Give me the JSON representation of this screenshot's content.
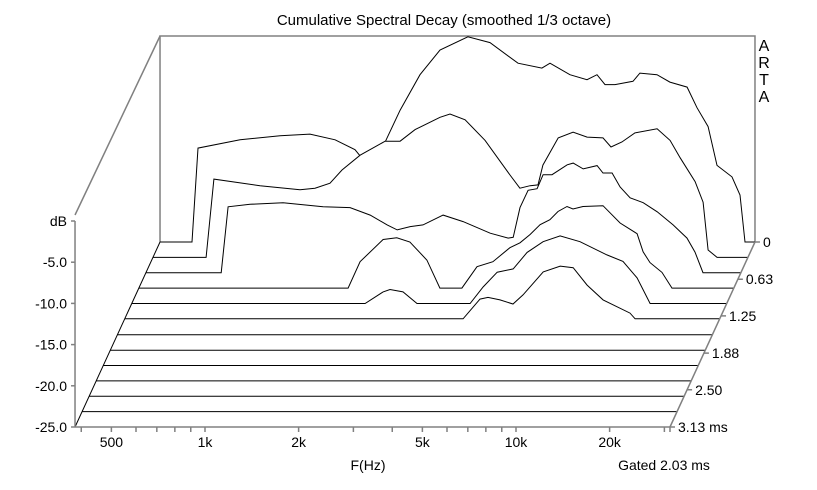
{
  "chart_data": {
    "type": "waterfall",
    "title": "Cumulative Spectral Decay (smoothed 1/3 octave)",
    "xlabel": "F(Hz)",
    "ylabel": "dB",
    "zlabel_unit": "ms",
    "note": "Gated 2.03 ms",
    "watermark": "ARTA",
    "x_scale": "log",
    "xlim": [
      382,
      31270
    ],
    "ylim": [
      -25,
      0
    ],
    "zlim": [
      0,
      3.13
    ],
    "x_ticks": [
      {
        "v": 500,
        "label": "500"
      },
      {
        "v": 1000,
        "label": "1k"
      },
      {
        "v": 2000,
        "label": "2k"
      },
      {
        "v": 5000,
        "label": "5k"
      },
      {
        "v": 10000,
        "label": "10k"
      },
      {
        "v": 20000,
        "label": "20k"
      }
    ],
    "x_minor_ticks": [
      400,
      500,
      600,
      700,
      800,
      900,
      1000,
      2000,
      3000,
      4000,
      5000,
      6000,
      7000,
      8000,
      9000,
      10000,
      20000,
      30000
    ],
    "y_ticks": [
      {
        "v": 0,
        "label": "dB"
      },
      {
        "v": -5,
        "label": "-5.0"
      },
      {
        "v": -10,
        "label": "-10.0"
      },
      {
        "v": -15,
        "label": "-15.0"
      },
      {
        "v": -20,
        "label": "-20.0"
      },
      {
        "v": -25,
        "label": "-25.0"
      }
    ],
    "z_ticks": [
      {
        "v": 0,
        "label": "0"
      },
      {
        "v": 0.63,
        "label": "0.63"
      },
      {
        "v": 1.25,
        "label": "1.25"
      },
      {
        "v": 1.88,
        "label": "1.88"
      },
      {
        "v": 2.5,
        "label": "2.50"
      },
      {
        "v": 3.13,
        "label": "3.13 ms"
      }
    ],
    "colors": {
      "curve": "#000000",
      "axis": "#808080",
      "fill": "#ffffff"
    },
    "slices": [
      {
        "t_ms": 0,
        "points": [
          [
            382,
            -25
          ],
          [
            484,
            -25
          ],
          [
            506,
            -13.6
          ],
          [
            691,
            -12.6
          ],
          [
            929,
            -12.1
          ],
          [
            1160,
            -11.9
          ],
          [
            1396,
            -12.6
          ],
          [
            1618,
            -13.8
          ],
          [
            1780,
            -15.7
          ],
          [
            2020,
            -12.9
          ],
          [
            2259,
            -9.0
          ],
          [
            2618,
            -4.7
          ],
          [
            3035,
            -1.7
          ],
          [
            3733,
            -0.1
          ],
          [
            4395,
            -0.8
          ],
          [
            5408,
            -3.3
          ],
          [
            6457,
            -3.9
          ],
          [
            6855,
            -3.3
          ],
          [
            7943,
            -4.7
          ],
          [
            9016,
            -5.3
          ],
          [
            9706,
            -4.7
          ],
          [
            10300,
            -5.9
          ],
          [
            11090,
            -5.9
          ],
          [
            12670,
            -5.5
          ],
          [
            13340,
            -4.5
          ],
          [
            15140,
            -4.7
          ],
          [
            16660,
            -5.6
          ],
          [
            18910,
            -6.2
          ],
          [
            20350,
            -8.7
          ],
          [
            22100,
            -11.0
          ],
          [
            23610,
            -15.7
          ],
          [
            26370,
            -17.1
          ],
          [
            27990,
            -19.3
          ],
          [
            29040,
            -25
          ],
          [
            31270,
            -25
          ]
        ]
      },
      {
        "t_ms": 0.26,
        "points": [
          [
            382,
            -25
          ],
          [
            566,
            -25
          ],
          [
            600,
            -15.5
          ],
          [
            844,
            -16.3
          ],
          [
            1135,
            -16.8
          ],
          [
            1268,
            -16.6
          ],
          [
            1417,
            -16.0
          ],
          [
            1549,
            -14.4
          ],
          [
            1770,
            -12.6
          ],
          [
            2130,
            -10.9
          ],
          [
            2381,
            -10.9
          ],
          [
            2660,
            -9.5
          ],
          [
            3199,
            -8.0
          ],
          [
            3444,
            -7.6
          ],
          [
            3852,
            -8.3
          ],
          [
            4467,
            -10.8
          ],
          [
            5373,
            -15.0
          ],
          [
            5781,
            -16.6
          ],
          [
            6233,
            -16.3
          ],
          [
            6607,
            -16.2
          ],
          [
            6855,
            -13.8
          ],
          [
            7674,
            -10.5
          ],
          [
            8570,
            -9.8
          ],
          [
            9506,
            -10.4
          ],
          [
            10690,
            -10.5
          ],
          [
            11350,
            -11.6
          ],
          [
            12300,
            -11.0
          ],
          [
            13550,
            -9.9
          ],
          [
            15960,
            -9.4
          ],
          [
            17580,
            -10.8
          ],
          [
            18930,
            -12.9
          ],
          [
            21150,
            -15.8
          ],
          [
            22440,
            -18.3
          ],
          [
            23280,
            -24.1
          ],
          [
            24890,
            -25
          ],
          [
            31270,
            -25
          ]
        ]
      },
      {
        "t_ms": 0.52,
        "points": [
          [
            382,
            -25
          ],
          [
            667,
            -25
          ],
          [
            702,
            -17.0
          ],
          [
            826,
            -16.7
          ],
          [
            1055,
            -16.5
          ],
          [
            1419,
            -17.0
          ],
          [
            1733,
            -17.1
          ],
          [
            2011,
            -18.0
          ],
          [
            2280,
            -19.2
          ],
          [
            2455,
            -19.8
          ],
          [
            2703,
            -19.4
          ],
          [
            2972,
            -19.2
          ],
          [
            3450,
            -18.0
          ],
          [
            4000,
            -18.8
          ],
          [
            4887,
            -20.2
          ],
          [
            5585,
            -20.8
          ],
          [
            5794,
            -20.7
          ],
          [
            6097,
            -17.1
          ],
          [
            6471,
            -15.0
          ],
          [
            6918,
            -14.8
          ],
          [
            7231,
            -13.1
          ],
          [
            7727,
            -13.1
          ],
          [
            8642,
            -11.9
          ],
          [
            9036,
            -11.7
          ],
          [
            9730,
            -12.4
          ],
          [
            10790,
            -12.0
          ],
          [
            11270,
            -12.9
          ],
          [
            12050,
            -12.9
          ],
          [
            12790,
            -14.6
          ],
          [
            13770,
            -15.9
          ],
          [
            15170,
            -16.5
          ],
          [
            16830,
            -17.6
          ],
          [
            18940,
            -19.2
          ],
          [
            20990,
            -20.8
          ],
          [
            22270,
            -22.5
          ],
          [
            23620,
            -25
          ],
          [
            31270,
            -25
          ]
        ]
      },
      {
        "t_ms": 0.78,
        "points": [
          [
            382,
            -25
          ],
          [
            1798,
            -25
          ],
          [
            1965,
            -21.8
          ],
          [
            2330,
            -19.1
          ],
          [
            2580,
            -18.9
          ],
          [
            2843,
            -19.4
          ],
          [
            3224,
            -21.6
          ],
          [
            3548,
            -25
          ],
          [
            4178,
            -25
          ],
          [
            4670,
            -22.4
          ],
          [
            5254,
            -21.8
          ],
          [
            5961,
            -20.1
          ],
          [
            6423,
            -19.5
          ],
          [
            6920,
            -18.5
          ],
          [
            7450,
            -17.3
          ],
          [
            8015,
            -16.7
          ],
          [
            8508,
            -15.7
          ],
          [
            9094,
            -15.1
          ],
          [
            9510,
            -15.4
          ],
          [
            10240,
            -15.1
          ],
          [
            11870,
            -15.0
          ],
          [
            13470,
            -17.1
          ],
          [
            15280,
            -18.4
          ],
          [
            15980,
            -20.6
          ],
          [
            16810,
            -21.9
          ],
          [
            18380,
            -23.1
          ],
          [
            19790,
            -25
          ],
          [
            31270,
            -25
          ]
        ]
      },
      {
        "t_ms": 1.04,
        "points": [
          [
            382,
            -25
          ],
          [
            2149,
            -25
          ],
          [
            2455,
            -23.6
          ],
          [
            2585,
            -23.3
          ],
          [
            2845,
            -23.6
          ],
          [
            3157,
            -25
          ],
          [
            4677,
            -25
          ],
          [
            5150,
            -23.0
          ],
          [
            5714,
            -21.2
          ],
          [
            6433,
            -20.8
          ],
          [
            7130,
            -18.8
          ],
          [
            8026,
            -17.5
          ],
          [
            9103,
            -16.8
          ],
          [
            10550,
            -17.5
          ],
          [
            12880,
            -19.1
          ],
          [
            14510,
            -19.9
          ],
          [
            16100,
            -21.9
          ],
          [
            17730,
            -25
          ],
          [
            31270,
            -25
          ]
        ]
      },
      {
        "t_ms": 1.3,
        "points": [
          [
            382,
            -25
          ],
          [
            4677,
            -25
          ],
          [
            5304,
            -22.6
          ],
          [
            5626,
            -22.4
          ],
          [
            6148,
            -22.7
          ],
          [
            6772,
            -23.2
          ],
          [
            7291,
            -22.1
          ],
          [
            8465,
            -19.3
          ],
          [
            9600,
            -18.6
          ],
          [
            10570,
            -18.8
          ],
          [
            11720,
            -20.9
          ],
          [
            13190,
            -22.7
          ],
          [
            16100,
            -24.3
          ],
          [
            16720,
            -25
          ],
          [
            31270,
            -25
          ]
        ]
      },
      {
        "t_ms": 1.57,
        "points": [
          [
            382,
            -25
          ],
          [
            31270,
            -25
          ]
        ]
      },
      {
        "t_ms": 1.83,
        "points": [
          [
            382,
            -25
          ],
          [
            31270,
            -25
          ]
        ]
      },
      {
        "t_ms": 2.09,
        "points": [
          [
            382,
            -25
          ],
          [
            31270,
            -25
          ]
        ]
      },
      {
        "t_ms": 2.35,
        "points": [
          [
            382,
            -25
          ],
          [
            31270,
            -25
          ]
        ]
      },
      {
        "t_ms": 2.61,
        "points": [
          [
            382,
            -25
          ],
          [
            31270,
            -25
          ]
        ]
      },
      {
        "t_ms": 2.87,
        "points": [
          [
            382,
            -25
          ],
          [
            31270,
            -25
          ]
        ]
      },
      {
        "t_ms": 3.13,
        "points": [
          [
            382,
            -25
          ],
          [
            31270,
            -25
          ]
        ]
      }
    ]
  }
}
